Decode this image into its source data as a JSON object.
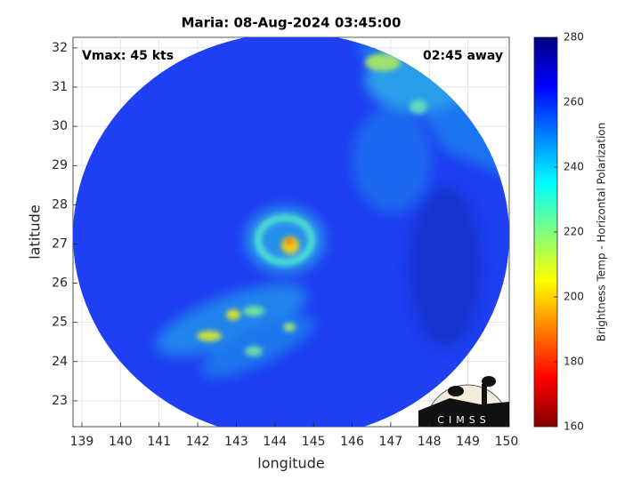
{
  "chart_data": {
    "type": "heatmap",
    "title": "Maria: 08-Aug-2024 03:45:00",
    "xlabel": "longitude",
    "ylabel": "latitude",
    "annotations": [
      "Vmax: 45 kts",
      "02:45 away"
    ],
    "logo_text": "CIMSS",
    "xlim": [
      138.77,
      150.07
    ],
    "xticks": [
      139,
      140,
      141,
      142,
      143,
      144,
      145,
      146,
      147,
      148,
      149,
      150
    ],
    "ylim": [
      22.34,
      32.27
    ],
    "yticks": [
      23,
      24,
      25,
      26,
      27,
      28,
      29,
      30,
      31,
      32
    ],
    "grid": true,
    "colorbar_label": "Brightness Temp - Horizontal Polarization",
    "clim": [
      160,
      280
    ],
    "cticks": [
      160,
      180,
      200,
      220,
      240,
      260,
      280
    ]
  }
}
